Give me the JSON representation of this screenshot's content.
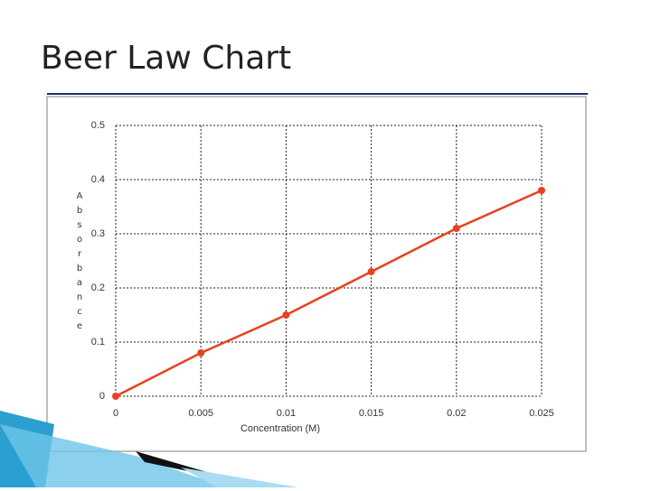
{
  "chart_data": {
    "type": "line",
    "title": "Beer Law Chart",
    "x_label": "Concentration (M)",
    "y_label": "Absorbance",
    "x": [
      0,
      0.005,
      0.01,
      0.015,
      0.02,
      0.025
    ],
    "series": [
      {
        "name": "Absorbance",
        "color": "#e8421e",
        "values": [
          0,
          0.08,
          0.15,
          0.23,
          0.31,
          0.38
        ]
      }
    ],
    "xlim": [
      0,
      0.025
    ],
    "xticks": [
      0,
      0.005,
      0.01,
      0.015,
      0.02,
      0.025
    ],
    "ylim": [
      0,
      0.5
    ],
    "yticks": [
      0,
      0.1,
      0.2,
      0.3,
      0.4,
      0.5
    ],
    "grid": true
  }
}
